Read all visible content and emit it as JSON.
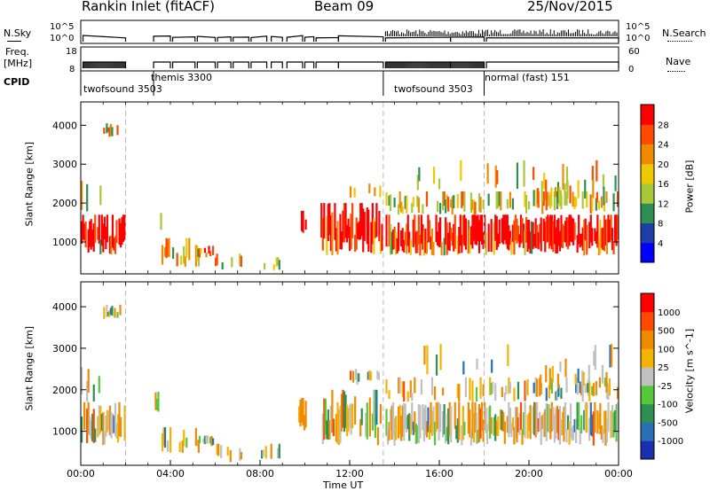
{
  "header": {
    "station": "Rankin Inlet (fitACF)",
    "beam": "Beam 09",
    "date": "25/Nov/2015"
  },
  "panels": {
    "nsky_label": "N.Sky",
    "nsky_ticks": [
      "10^5",
      "10^0"
    ],
    "nsearch_label": "N.Search",
    "nsearch_ticks": [
      "10^5",
      "10^0"
    ],
    "freq_label_1": "Freq.",
    "freq_label_2": "[MHz]",
    "freq_ticks": [
      "18",
      "8"
    ],
    "nave_label": "Nave",
    "nave_ticks": [
      "60",
      "0"
    ],
    "cpid_label": "CPID"
  },
  "modes": [
    {
      "name": "twofsound",
      "id": "3503",
      "start": 0.0,
      "end": 2.0
    },
    {
      "name": "themis",
      "id": "3300",
      "start": 3.25,
      "end": 13.5
    },
    {
      "name": "twofsound",
      "id": "3503",
      "start": 13.5,
      "end": 18.0
    },
    {
      "name": "normal (fast)",
      "id": "151",
      "start": 18.0,
      "end": 24.0
    }
  ],
  "chart_data": [
    {
      "type": "heatmap",
      "name": "Power",
      "ylabel": "Slant Range [km]",
      "yticks": [
        1000,
        2000,
        3000,
        4000
      ],
      "ylim": [
        180,
        4600
      ],
      "xlim": [
        0,
        24
      ],
      "colorbar_label": "Power [dB]",
      "colorbar_ticks": [
        "4",
        "8",
        "12",
        "16",
        "20",
        "24",
        "28"
      ],
      "colorbar_range": [
        0,
        32
      ],
      "colors": [
        "#0000ff",
        "#1e3fa8",
        "#2d8f52",
        "#a8c83a",
        "#f0c800",
        "#f08a00",
        "#ff4a00",
        "#ff0000"
      ]
    },
    {
      "type": "heatmap",
      "name": "Velocity",
      "ylabel": "Slant Range [km]",
      "yticks": [
        1000,
        2000,
        3000,
        4000
      ],
      "ylim": [
        180,
        4600
      ],
      "xlim": [
        0,
        24
      ],
      "colorbar_label": "Velocity [m s^-1]",
      "colorbar_ticks": [
        "1000",
        "500",
        "100",
        "25",
        "-25",
        "-100",
        "-500",
        "-1000"
      ],
      "colors": [
        "#1a2fb0",
        "#2a70b8",
        "#2d8f52",
        "#55c83a",
        "#c0c0c0",
        "#f5b200",
        "#f08a00",
        "#ff4a00",
        "#ff0000"
      ]
    }
  ],
  "xaxis": {
    "label": "Time UT",
    "ticks": [
      "00:00",
      "04:00",
      "08:00",
      "12:00",
      "16:00",
      "20:00",
      "00:00"
    ],
    "hours": [
      0,
      4,
      8,
      12,
      16,
      20,
      24
    ]
  }
}
